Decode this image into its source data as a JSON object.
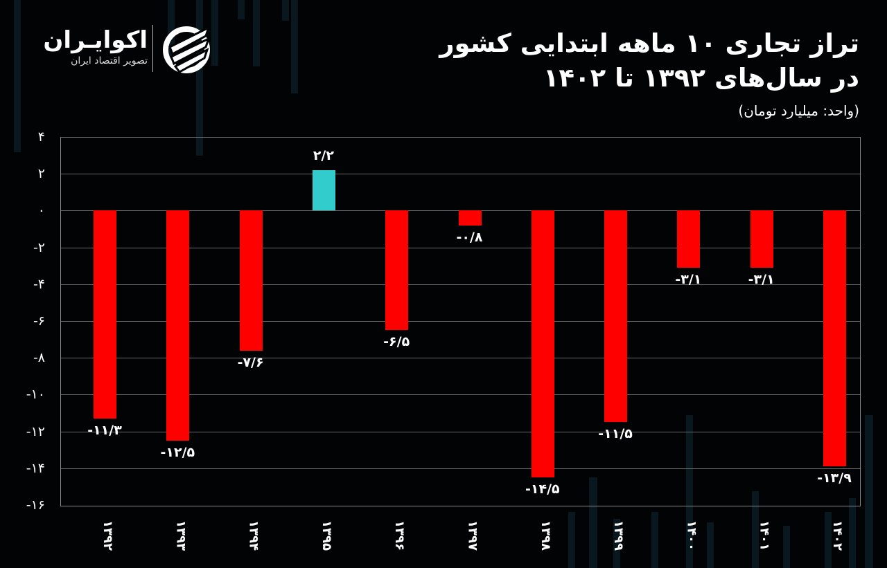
{
  "header": {
    "title_line1": "تراز تجاری ۱۰ ماهه ابتدایی کشور",
    "title_line2": "در سال‌های ۱۳۹۲ تا ۱۴۰۲",
    "unit": "(واحد: میلیارد تومان)"
  },
  "logo": {
    "name": "اکوایـران",
    "tagline": "تصویر اقتصاد ایران",
    "icon": "ecoiran-swoosh-icon"
  },
  "colors": {
    "background": "#020304",
    "negative_bar": "#ff0000",
    "positive_bar": "#33cccc",
    "grid": "#6c6c6c",
    "text": "#ffffff"
  },
  "chart_data": {
    "type": "bar",
    "title": "تراز تجاری ۱۰ ماهه ابتدایی کشور در سال‌های ۱۳۹۲ تا ۱۴۰۲",
    "subtitle": "(واحد: میلیارد تومان)",
    "xlabel": "",
    "ylabel": "",
    "ylim": [
      -16,
      4
    ],
    "yticks": [
      4,
      2,
      0,
      -2,
      -4,
      -6,
      -8,
      -10,
      -12,
      -14,
      -16
    ],
    "ytick_labels": [
      "۴",
      "۲",
      "۰",
      "-۲",
      "-۴",
      "-۶",
      "-۸",
      "-۱۰",
      "-۱۲",
      "-۱۴",
      "-۱۶"
    ],
    "grid": true,
    "legend": "none",
    "categories": [
      "۱۳۹۲",
      "۱۳۹۳",
      "۱۳۹۴",
      "۱۳۹۵",
      "۱۳۹۶",
      "۱۳۹۷",
      "۱۳۹۸",
      "۱۳۹۹",
      "۱۴۰۰",
      "۱۴۰۱",
      "۱۴۰۲"
    ],
    "categories_latin": [
      "1392",
      "1393",
      "1394",
      "1395",
      "1396",
      "1397",
      "1398",
      "1399",
      "1400",
      "1401",
      "1402"
    ],
    "values": [
      -11.3,
      -12.5,
      -7.6,
      2.2,
      -6.5,
      -0.8,
      -14.5,
      -11.5,
      -3.1,
      -3.1,
      -13.9
    ],
    "value_labels": [
      "-۱۱/۳",
      "-۱۲/۵",
      "-۷/۶",
      "۲/۲",
      "-۶/۵",
      "-۰/۸",
      "-۱۴/۵",
      "-۱۱/۵",
      "-۳/۱",
      "-۳/۱",
      "-۱۳/۹"
    ]
  }
}
